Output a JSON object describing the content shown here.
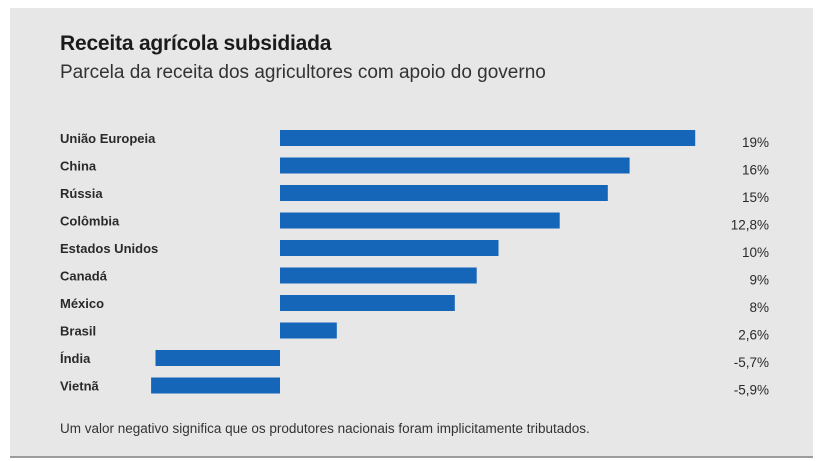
{
  "chart_data": {
    "type": "bar",
    "orientation": "horizontal",
    "title": "Receita agrícola subsidiada",
    "subtitle": "Parcela da receita dos agricultores com apoio do governo",
    "categories": [
      "União Europeia",
      "China",
      "Rússia",
      "Colômbia",
      "Estados Unidos",
      "Canadá",
      "México",
      "Brasil",
      "Índia",
      "Vietnã"
    ],
    "values": [
      19,
      16,
      15,
      12.8,
      10,
      9,
      8,
      2.6,
      -5.7,
      -5.9
    ],
    "value_labels": [
      "19%",
      "16%",
      "15%",
      "12,8%",
      "10%",
      "9%",
      "8%",
      "2,6%",
      "-5,7%",
      "-5,9%"
    ],
    "xlim": [
      -6,
      19
    ],
    "bar_color": "#1565b8",
    "grid": false,
    "legend": "none",
    "footnote": "Um valor negativo significa que os produtores nacionais foram implicitamente tributados."
  }
}
